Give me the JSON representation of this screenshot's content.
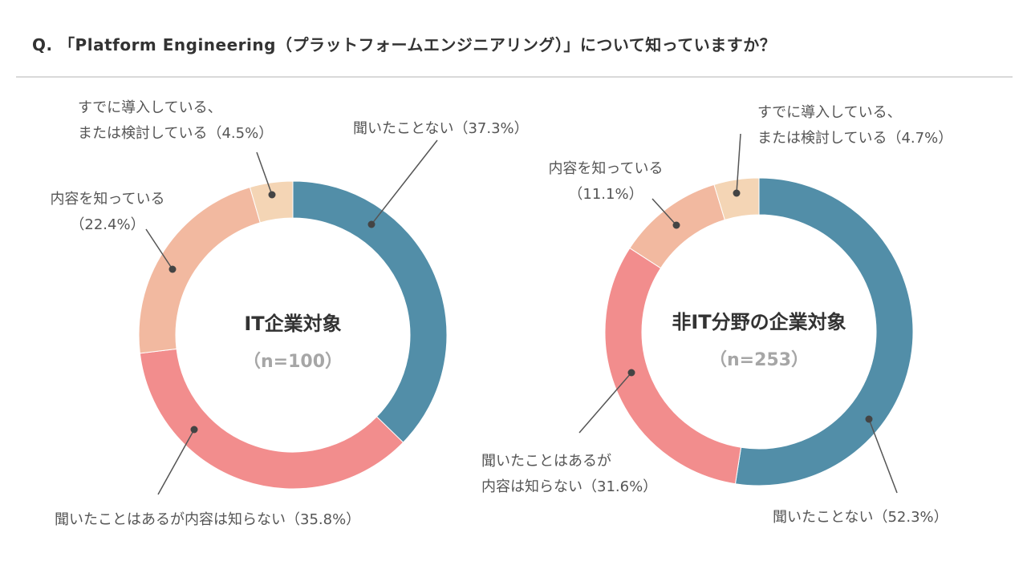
{
  "question": "Q. 「Platform Engineering（プラットフォームエンジニアリング）」について知っていますか？",
  "colors": {
    "never_heard": "#528EA8",
    "heard_unknown": "#F28D8D",
    "know": "#F2B9A0",
    "adopted": "#F4D5B5"
  },
  "chart_data": [
    {
      "type": "pie",
      "title": "IT企業対象",
      "sample": "（n=100）",
      "slices": [
        {
          "key": "never_heard",
          "value": 37.3,
          "label_lines": [
            "聞いたことない（37.3%）"
          ]
        },
        {
          "key": "heard_unknown",
          "value": 35.8,
          "label_lines": [
            "聞いたことはあるが内容は知らない（35.8%）"
          ]
        },
        {
          "key": "know",
          "value": 22.4,
          "label_lines": [
            "内容を知っている",
            "（22.4%）"
          ]
        },
        {
          "key": "adopted",
          "value": 4.5,
          "label_lines": [
            "すでに導入している、",
            "または検討している（4.5%）"
          ]
        }
      ]
    },
    {
      "type": "pie",
      "title": "非IT分野の企業対象",
      "sample": "（n=253）",
      "slices": [
        {
          "key": "never_heard",
          "value": 52.3,
          "label_lines": [
            "聞いたことない（52.3%）"
          ]
        },
        {
          "key": "heard_unknown",
          "value": 31.6,
          "label_lines": [
            "聞いたことはあるが",
            "内容は知らない（31.6%）"
          ]
        },
        {
          "key": "know",
          "value": 11.1,
          "label_lines": [
            "内容を知っている",
            "（11.1%）"
          ]
        },
        {
          "key": "adopted",
          "value": 4.7,
          "label_lines": [
            "すでに導入している、",
            "または検討している（4.7%）"
          ]
        }
      ]
    }
  ]
}
